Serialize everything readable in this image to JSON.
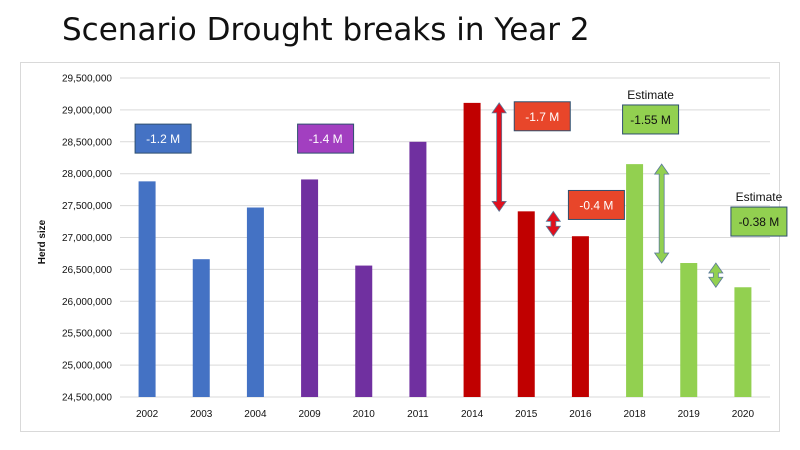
{
  "title": "Scenario Drought breaks in Year 2",
  "chart_data": {
    "type": "bar",
    "ylabel": "Herd size",
    "xlabel": "",
    "ylim": [
      24500000,
      29500000
    ],
    "yticks": [
      24500000,
      25000000,
      25500000,
      26000000,
      26500000,
      27000000,
      27500000,
      28000000,
      28500000,
      29000000,
      29500000
    ],
    "ytick_labels": [
      "24,500,000",
      "25,000,000",
      "25,500,000",
      "26,000,000",
      "26,500,000",
      "27,000,000",
      "27,500,000",
      "28,000,000",
      "28,500,000",
      "29,000,000",
      "29,500,000"
    ],
    "grid": true,
    "categories": [
      "2002",
      "2003",
      "2004",
      "2009",
      "2010",
      "2011",
      "2014",
      "2015",
      "2016",
      "2018",
      "2019",
      "2020"
    ],
    "values": [
      27880000,
      26660000,
      27470000,
      27910000,
      26560000,
      28500000,
      29110000,
      27410000,
      27020000,
      28150000,
      26600000,
      26220000
    ],
    "bar_colors": [
      "#4472c4",
      "#4472c4",
      "#4472c4",
      "#7030a0",
      "#7030a0",
      "#7030a0",
      "#c00000",
      "#c00000",
      "#c00000",
      "#92d050",
      "#92d050",
      "#92d050"
    ],
    "annotations": [
      {
        "text": "-1.2 M",
        "fill": "#4472c4",
        "text_color": "#ffffff",
        "anchor_category": "2002",
        "level": 28550000
      },
      {
        "text": "-1.4 M",
        "fill": "#a23fc0",
        "text_color": "#ffffff",
        "anchor_category": "2009",
        "level": 28550000
      },
      {
        "text": "-1.7 M",
        "fill": "#e8462a",
        "text_color": "#ffffff",
        "anchor_category": "2015",
        "level": 28900000
      },
      {
        "text": "-0.4 M",
        "fill": "#e8462a",
        "text_color": "#ffffff",
        "anchor_category": "2016",
        "level": 27510000
      },
      {
        "text": "-1.55 M",
        "fill": "#92d050",
        "text_color": "#111111",
        "anchor_category": "2018",
        "level": 28850000,
        "label_above": "Estimate"
      },
      {
        "text": "-0.38 M",
        "fill": "#92d050",
        "text_color": "#111111",
        "anchor_category": "2020",
        "level": 27250000,
        "label_above": "Estimate"
      }
    ],
    "arrows": [
      {
        "from_category": "2014",
        "to_category": "2015",
        "top": 29110000,
        "bottom": 27410000,
        "color": "#e0101e"
      },
      {
        "from_category": "2015",
        "to_category": "2016",
        "top": 27410000,
        "bottom": 27020000,
        "color": "#e0101e"
      },
      {
        "from_category": "2018",
        "to_category": "2019",
        "top": 28150000,
        "bottom": 26600000,
        "color": "#92d050"
      },
      {
        "from_category": "2019",
        "to_category": "2020",
        "top": 26600000,
        "bottom": 26220000,
        "color": "#92d050"
      }
    ]
  }
}
